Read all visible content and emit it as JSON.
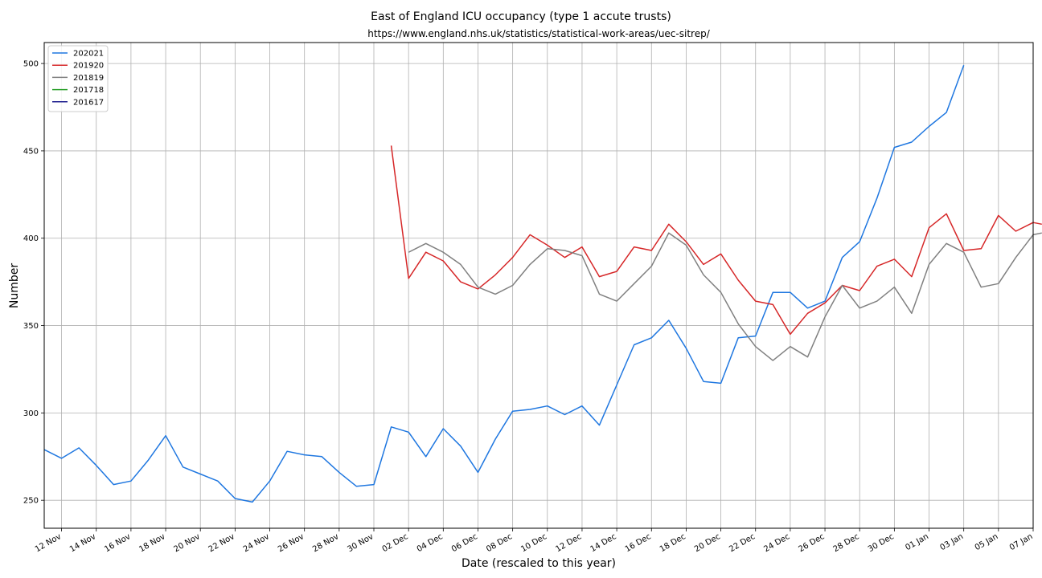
{
  "chart_data": {
    "type": "line",
    "title": "East of England ICU occupancy (type 1 accute trusts)",
    "subtitle": "https://www.england.nhs.uk/statistics/statistical-work-areas/uec-sitrep/",
    "xlabel": "Date (rescaled to this year)",
    "ylabel": "Number",
    "xlim": [
      "2020-11-11",
      "2021-01-07"
    ],
    "ylim": [
      234,
      512
    ],
    "grid": true,
    "legend_position": "top-left",
    "x_ticks": [
      {
        "date": "2020-11-12",
        "label": "12 Nov"
      },
      {
        "date": "2020-11-14",
        "label": "14 Nov"
      },
      {
        "date": "2020-11-16",
        "label": "16 Nov"
      },
      {
        "date": "2020-11-18",
        "label": "18 Nov"
      },
      {
        "date": "2020-11-20",
        "label": "20 Nov"
      },
      {
        "date": "2020-11-22",
        "label": "22 Nov"
      },
      {
        "date": "2020-11-24",
        "label": "24 Nov"
      },
      {
        "date": "2020-11-26",
        "label": "26 Nov"
      },
      {
        "date": "2020-11-28",
        "label": "28 Nov"
      },
      {
        "date": "2020-11-30",
        "label": "30 Nov"
      },
      {
        "date": "2020-12-02",
        "label": "02 Dec"
      },
      {
        "date": "2020-12-04",
        "label": "04 Dec"
      },
      {
        "date": "2020-12-06",
        "label": "06 Dec"
      },
      {
        "date": "2020-12-08",
        "label": "08 Dec"
      },
      {
        "date": "2020-12-10",
        "label": "10 Dec"
      },
      {
        "date": "2020-12-12",
        "label": "12 Dec"
      },
      {
        "date": "2020-12-14",
        "label": "14 Dec"
      },
      {
        "date": "2020-12-16",
        "label": "16 Dec"
      },
      {
        "date": "2020-12-18",
        "label": "18 Dec"
      },
      {
        "date": "2020-12-20",
        "label": "20 Dec"
      },
      {
        "date": "2020-12-22",
        "label": "22 Dec"
      },
      {
        "date": "2020-12-24",
        "label": "24 Dec"
      },
      {
        "date": "2020-12-26",
        "label": "26 Dec"
      },
      {
        "date": "2020-12-28",
        "label": "28 Dec"
      },
      {
        "date": "2020-12-30",
        "label": "30 Dec"
      },
      {
        "date": "2021-01-01",
        "label": "01 Jan"
      },
      {
        "date": "2021-01-03",
        "label": "03 Jan"
      },
      {
        "date": "2021-01-05",
        "label": "05 Jan"
      },
      {
        "date": "2021-01-07",
        "label": "07 Jan"
      }
    ],
    "y_ticks": [
      250,
      300,
      350,
      400,
      450,
      500
    ],
    "series": [
      {
        "name": "202021",
        "color": "#1f77e0",
        "points": [
          [
            "2020-11-11",
            279
          ],
          [
            "2020-11-12",
            274
          ],
          [
            "2020-11-13",
            280
          ],
          [
            "2020-11-14",
            270
          ],
          [
            "2020-11-15",
            259
          ],
          [
            "2020-11-16",
            261
          ],
          [
            "2020-11-17",
            273
          ],
          [
            "2020-11-18",
            287
          ],
          [
            "2020-11-19",
            269
          ],
          [
            "2020-11-20",
            265
          ],
          [
            "2020-11-21",
            261
          ],
          [
            "2020-11-22",
            251
          ],
          [
            "2020-11-23",
            249
          ],
          [
            "2020-11-24",
            261
          ],
          [
            "2020-11-25",
            278
          ],
          [
            "2020-11-26",
            276
          ],
          [
            "2020-11-27",
            275
          ],
          [
            "2020-11-28",
            266
          ],
          [
            "2020-11-29",
            258
          ],
          [
            "2020-11-30",
            259
          ],
          [
            "2020-12-01",
            292
          ],
          [
            "2020-12-02",
            289
          ],
          [
            "2020-12-03",
            275
          ],
          [
            "2020-12-04",
            291
          ],
          [
            "2020-12-05",
            281
          ],
          [
            "2020-12-06",
            266
          ],
          [
            "2020-12-07",
            285
          ],
          [
            "2020-12-08",
            301
          ],
          [
            "2020-12-09",
            302
          ],
          [
            "2020-12-10",
            304
          ],
          [
            "2020-12-11",
            299
          ],
          [
            "2020-12-12",
            304
          ],
          [
            "2020-12-13",
            293
          ],
          [
            "2020-12-14",
            316
          ],
          [
            "2020-12-15",
            339
          ],
          [
            "2020-12-16",
            343
          ],
          [
            "2020-12-17",
            353
          ],
          [
            "2020-12-18",
            337
          ],
          [
            "2020-12-19",
            318
          ],
          [
            "2020-12-20",
            317
          ],
          [
            "2020-12-21",
            343
          ],
          [
            "2020-12-22",
            344
          ],
          [
            "2020-12-23",
            369
          ],
          [
            "2020-12-24",
            369
          ],
          [
            "2020-12-25",
            360
          ],
          [
            "2020-12-26",
            364
          ],
          [
            "2020-12-27",
            389
          ],
          [
            "2020-12-28",
            398
          ],
          [
            "2020-12-29",
            423
          ],
          [
            "2020-12-30",
            452
          ],
          [
            "2020-12-31",
            455
          ],
          [
            "2021-01-01",
            464
          ],
          [
            "2021-01-02",
            472
          ],
          [
            "2021-01-03",
            499
          ]
        ]
      },
      {
        "name": "201920",
        "color": "#d62728",
        "points": [
          [
            "2020-12-01",
            453
          ],
          [
            "2020-12-02",
            377
          ],
          [
            "2020-12-03",
            392
          ],
          [
            "2020-12-04",
            387
          ],
          [
            "2020-12-05",
            375
          ],
          [
            "2020-12-06",
            371
          ],
          [
            "2020-12-07",
            379
          ],
          [
            "2020-12-08",
            389
          ],
          [
            "2020-12-09",
            402
          ],
          [
            "2020-12-10",
            396
          ],
          [
            "2020-12-11",
            389
          ],
          [
            "2020-12-12",
            395
          ],
          [
            "2020-12-13",
            378
          ],
          [
            "2020-12-14",
            381
          ],
          [
            "2020-12-15",
            395
          ],
          [
            "2020-12-16",
            393
          ],
          [
            "2020-12-17",
            408
          ],
          [
            "2020-12-18",
            398
          ],
          [
            "2020-12-19",
            385
          ],
          [
            "2020-12-20",
            391
          ],
          [
            "2020-12-21",
            376
          ],
          [
            "2020-12-22",
            364
          ],
          [
            "2020-12-23",
            362
          ],
          [
            "2020-12-24",
            345
          ],
          [
            "2020-12-25",
            357
          ],
          [
            "2020-12-26",
            363
          ],
          [
            "2020-12-27",
            373
          ],
          [
            "2020-12-28",
            370
          ],
          [
            "2020-12-29",
            384
          ],
          [
            "2020-12-30",
            388
          ],
          [
            "2020-12-31",
            378
          ],
          [
            "2021-01-01",
            406
          ],
          [
            "2021-01-02",
            414
          ],
          [
            "2021-01-03",
            393
          ],
          [
            "2021-01-04",
            394
          ],
          [
            "2021-01-05",
            413
          ],
          [
            "2021-01-06",
            404
          ],
          [
            "2021-01-07",
            409
          ],
          [
            "2021-01-07.5",
            408
          ]
        ]
      },
      {
        "name": "201819",
        "color": "#808080",
        "points": [
          [
            "2020-12-02",
            392
          ],
          [
            "2020-12-03",
            397
          ],
          [
            "2020-12-04",
            392
          ],
          [
            "2020-12-05",
            385
          ],
          [
            "2020-12-06",
            372
          ],
          [
            "2020-12-07",
            368
          ],
          [
            "2020-12-08",
            373
          ],
          [
            "2020-12-09",
            385
          ],
          [
            "2020-12-10",
            394
          ],
          [
            "2020-12-11",
            393
          ],
          [
            "2020-12-12",
            390
          ],
          [
            "2020-12-13",
            368
          ],
          [
            "2020-12-14",
            364
          ],
          [
            "2020-12-15",
            374
          ],
          [
            "2020-12-16",
            384
          ],
          [
            "2020-12-17",
            403
          ],
          [
            "2020-12-18",
            396
          ],
          [
            "2020-12-19",
            379
          ],
          [
            "2020-12-20",
            369
          ],
          [
            "2020-12-21",
            351
          ],
          [
            "2020-12-22",
            338
          ],
          [
            "2020-12-23",
            330
          ],
          [
            "2020-12-24",
            338
          ],
          [
            "2020-12-25",
            332
          ],
          [
            "2020-12-26",
            355
          ],
          [
            "2020-12-27",
            373
          ],
          [
            "2020-12-28",
            360
          ],
          [
            "2020-12-29",
            364
          ],
          [
            "2020-12-30",
            372
          ],
          [
            "2020-12-31",
            357
          ],
          [
            "2021-01-01",
            385
          ],
          [
            "2021-01-02",
            397
          ],
          [
            "2021-01-03",
            392
          ],
          [
            "2021-01-04",
            372
          ],
          [
            "2021-01-05",
            374
          ],
          [
            "2021-01-06",
            389
          ],
          [
            "2021-01-07",
            402
          ],
          [
            "2021-01-07.5",
            403
          ]
        ]
      },
      {
        "name": "201718",
        "color": "#2ca02c",
        "points": []
      },
      {
        "name": "201617",
        "color": "#1f1f8f",
        "points": []
      }
    ]
  }
}
